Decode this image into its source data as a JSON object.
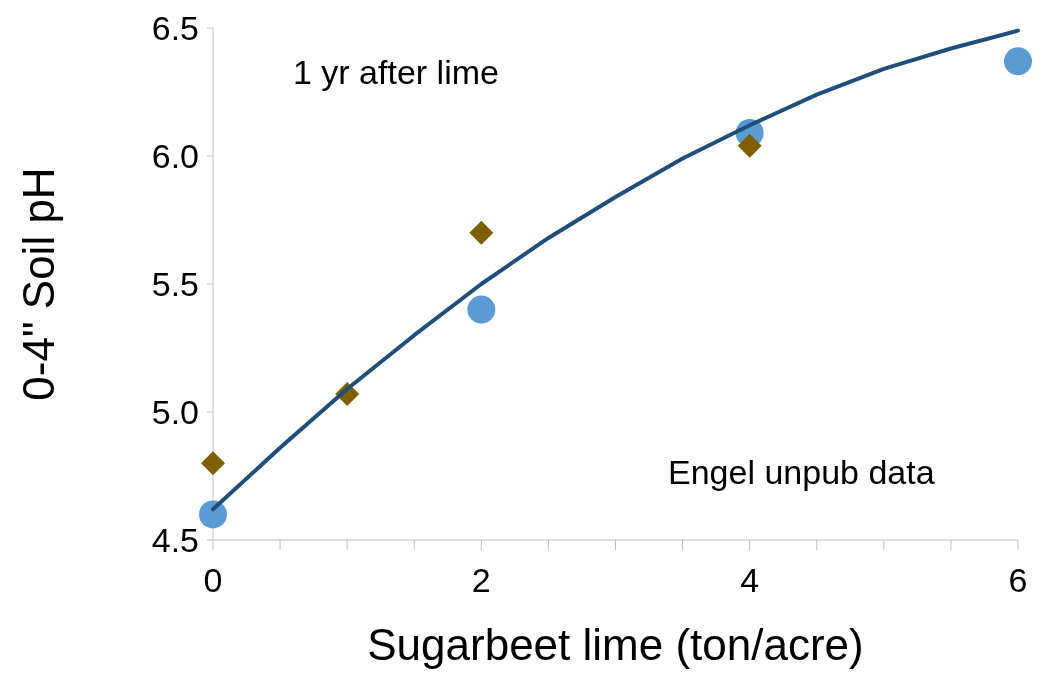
{
  "chart_data": {
    "type": "scatter",
    "xlabel": "Sugarbeet lime (ton/acre)",
    "ylabel": "0-4\" Soil pH",
    "xlim": [
      0,
      6
    ],
    "xticks": [
      0,
      {
        "value": 0.5,
        "label": null
      },
      {
        "value": 1,
        "label": null
      },
      {
        "value": 1.5,
        "label": null
      },
      2,
      {
        "value": 2.5,
        "label": null
      },
      {
        "value": 3,
        "label": null
      },
      {
        "value": 3.5,
        "label": null
      },
      4,
      {
        "value": 4.5,
        "label": null
      },
      {
        "value": 5,
        "label": null
      },
      {
        "value": 5.5,
        "label": null
      },
      6
    ],
    "ylim": [
      4.5,
      6.5
    ],
    "yticks": [
      4.5,
      {
        "value": 5,
        "label": "5.0"
      },
      5.5,
      {
        "value": 6,
        "label": "6.0"
      },
      6.5
    ],
    "grid": false,
    "legend": false,
    "series": [
      {
        "marker": "circle",
        "color": "#5b9bd5",
        "x": [
          0,
          2,
          4,
          6
        ],
        "values": [
          4.6,
          5.4,
          6.09,
          6.37
        ]
      },
      {
        "marker": "diamond",
        "color": "#7f6000",
        "x": [
          0,
          1,
          2,
          4
        ],
        "values": [
          4.8,
          5.07,
          5.7,
          6.04
        ]
      },
      {
        "type": "line",
        "marker": "none",
        "color": "#1f4e79",
        "x": [
          0,
          0.5,
          1,
          1.5,
          2,
          2.5,
          3,
          3.5,
          4,
          4.5,
          5,
          5.5,
          6
        ],
        "values": [
          4.62,
          4.86,
          5.09,
          5.3,
          5.5,
          5.68,
          5.84,
          5.99,
          6.12,
          6.24,
          6.34,
          6.42,
          6.49
        ]
      }
    ],
    "annotations": [
      "1 yr after lime",
      "Engel unpub data"
    ]
  }
}
